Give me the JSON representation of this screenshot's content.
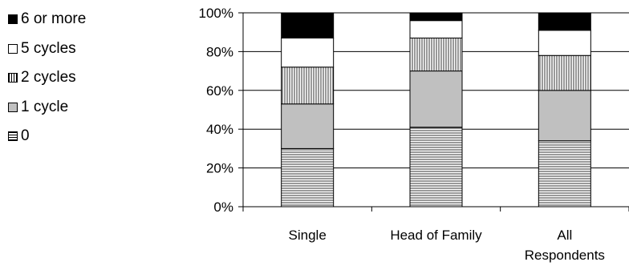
{
  "chart_data": {
    "type": "bar",
    "stacked": true,
    "normalized": true,
    "categories": [
      "Single",
      "Head of Family",
      "All Respondents"
    ],
    "category_lines": [
      [
        "Single"
      ],
      [
        "Head of Family"
      ],
      [
        "All",
        "Respondents"
      ]
    ],
    "series": [
      {
        "name": "0",
        "values": [
          30,
          41,
          34
        ],
        "pattern": "horizontal-lines"
      },
      {
        "name": "1 cycle",
        "values": [
          23,
          29,
          26
        ],
        "pattern": "gray"
      },
      {
        "name": "2 cycles",
        "values": [
          19,
          17,
          18
        ],
        "pattern": "vertical-lines"
      },
      {
        "name": "5 cycles",
        "values": [
          15,
          9,
          13
        ],
        "pattern": "white"
      },
      {
        "name": "6 or more",
        "values": [
          13,
          4,
          9
        ],
        "pattern": "black"
      }
    ],
    "ylim": [
      0,
      100
    ],
    "yticks": [
      "0%",
      "20%",
      "40%",
      "60%",
      "80%",
      "100%"
    ],
    "grid": true,
    "legend_position": "left"
  },
  "legend_order": [
    "6 or more",
    "5 cycles",
    "2 cycles",
    "1 cycle",
    "0"
  ],
  "colors": {
    "gray": "#c0c0c0",
    "black": "#000000",
    "white": "#ffffff"
  }
}
